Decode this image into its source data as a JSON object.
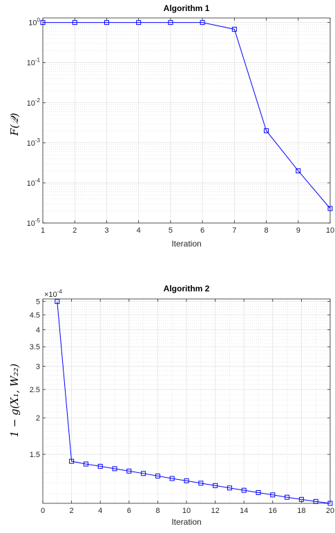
{
  "chart_data": [
    {
      "type": "line",
      "title": "Algorithm 1",
      "xlabel": "Iteration",
      "ylabel": "F(𝒬)",
      "yscale": "log",
      "xlim": [
        1,
        10
      ],
      "ylim": [
        1e-05,
        1.3
      ],
      "xticks": [
        1,
        2,
        3,
        4,
        5,
        6,
        7,
        8,
        9,
        10
      ],
      "yticks": [
        {
          "base": "10",
          "exp": "0",
          "value": 1
        },
        {
          "base": "10",
          "exp": "-1",
          "value": 0.1
        },
        {
          "base": "10",
          "exp": "-2",
          "value": 0.01
        },
        {
          "base": "10",
          "exp": "-3",
          "value": 0.001
        },
        {
          "base": "10",
          "exp": "-4",
          "value": 0.0001
        },
        {
          "base": "10",
          "exp": "-5",
          "value": 1e-05
        }
      ],
      "grid": true,
      "minor_grid": true,
      "color": "#0000ff",
      "marker": "square",
      "series": [
        {
          "x": [
            1,
            2,
            3,
            4,
            5,
            6,
            7,
            8,
            9,
            10
          ],
          "y": [
            1,
            1,
            1,
            1,
            1,
            1,
            0.68,
            0.002,
            0.0002,
            2.3e-05
          ]
        }
      ]
    },
    {
      "type": "line",
      "title": "Algorithm 2",
      "xlabel": "Iteration",
      "ylabel": "1 − g(X₁, W₂₂)",
      "yscale": "log",
      "exponent_label": {
        "prefix": "×10",
        "exp": "-4"
      },
      "xlim": [
        0,
        20
      ],
      "ylim": [
        1.02,
        5.1
      ],
      "xticks": [
        0,
        2,
        4,
        6,
        8,
        10,
        12,
        14,
        16,
        18,
        20
      ],
      "yticks": [
        "1.5",
        "2",
        "2.5",
        "3",
        "3.5",
        "4",
        "4.5",
        "5"
      ],
      "grid": true,
      "minor_grid": true,
      "color": "#0000ff",
      "marker": "square",
      "series": [
        {
          "x": [
            1,
            2,
            3,
            4,
            5,
            6,
            7,
            8,
            9,
            10,
            11,
            12,
            13,
            14,
            15,
            16,
            17,
            18,
            19,
            20
          ],
          "y": [
            5.0,
            1.42,
            1.39,
            1.365,
            1.34,
            1.315,
            1.29,
            1.265,
            1.24,
            1.218,
            1.195,
            1.173,
            1.151,
            1.13,
            1.11,
            1.09,
            1.07,
            1.052,
            1.035,
            1.02
          ]
        }
      ]
    }
  ]
}
